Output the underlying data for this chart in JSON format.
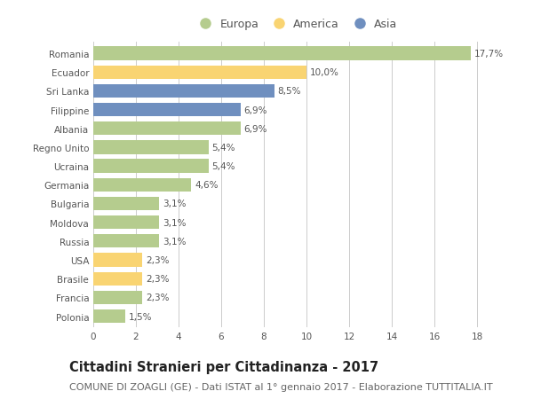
{
  "countries": [
    "Romania",
    "Ecuador",
    "Sri Lanka",
    "Filippine",
    "Albania",
    "Regno Unito",
    "Ucraina",
    "Germania",
    "Bulgaria",
    "Moldova",
    "Russia",
    "USA",
    "Brasile",
    "Francia",
    "Polonia"
  ],
  "values": [
    17.7,
    10.0,
    8.5,
    6.9,
    6.9,
    5.4,
    5.4,
    4.6,
    3.1,
    3.1,
    3.1,
    2.3,
    2.3,
    2.3,
    1.5
  ],
  "labels": [
    "17,7%",
    "10,0%",
    "8,5%",
    "6,9%",
    "6,9%",
    "5,4%",
    "5,4%",
    "4,6%",
    "3,1%",
    "3,1%",
    "3,1%",
    "2,3%",
    "2,3%",
    "2,3%",
    "1,5%"
  ],
  "continents": [
    "Europa",
    "America",
    "Asia",
    "Asia",
    "Europa",
    "Europa",
    "Europa",
    "Europa",
    "Europa",
    "Europa",
    "Europa",
    "America",
    "America",
    "Europa",
    "Europa"
  ],
  "colors": {
    "Europa": "#b5cc8e",
    "America": "#f9d472",
    "Asia": "#6f8fbf"
  },
  "xlim": [
    0,
    19
  ],
  "xticks": [
    0,
    2,
    4,
    6,
    8,
    10,
    12,
    14,
    16,
    18
  ],
  "title": "Cittadini Stranieri per Cittadinanza - 2017",
  "subtitle": "COMUNE DI ZOAGLI (GE) - Dati ISTAT al 1° gennaio 2017 - Elaborazione TUTTITALIA.IT",
  "background_color": "#ffffff",
  "grid_color": "#cccccc",
  "bar_height": 0.72,
  "title_fontsize": 10.5,
  "subtitle_fontsize": 8,
  "label_fontsize": 7.5,
  "tick_fontsize": 7.5,
  "legend_fontsize": 9
}
